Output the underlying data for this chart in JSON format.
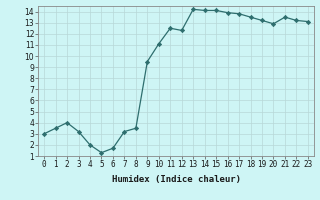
{
  "x": [
    0,
    1,
    2,
    3,
    4,
    5,
    6,
    7,
    8,
    9,
    10,
    11,
    12,
    13,
    14,
    15,
    16,
    17,
    18,
    19,
    20,
    21,
    22,
    23
  ],
  "y": [
    3.0,
    3.5,
    4.0,
    3.2,
    2.0,
    1.3,
    1.7,
    3.2,
    3.5,
    9.5,
    11.1,
    12.5,
    12.3,
    14.2,
    14.1,
    14.1,
    13.9,
    13.8,
    13.5,
    13.2,
    12.9,
    13.5,
    13.2,
    13.1
  ],
  "line_color": "#2e6e6e",
  "marker": "D",
  "marker_size": 2.2,
  "bg_color": "#cef5f5",
  "grid_color": "#b8d8d8",
  "xlabel": "Humidex (Indice chaleur)",
  "xlim": [
    -0.5,
    23.5
  ],
  "ylim": [
    1,
    14.5
  ],
  "yticks": [
    1,
    2,
    3,
    4,
    5,
    6,
    7,
    8,
    9,
    10,
    11,
    12,
    13,
    14
  ],
  "xtick_labels": [
    "0",
    "1",
    "2",
    "3",
    "4",
    "5",
    "6",
    "7",
    "8",
    "9",
    "10",
    "11",
    "12",
    "13",
    "14",
    "15",
    "16",
    "17",
    "18",
    "19",
    "20",
    "21",
    "22",
    "23"
  ],
  "axis_fontsize": 6,
  "tick_fontsize": 5.5,
  "xlabel_fontsize": 6.5
}
